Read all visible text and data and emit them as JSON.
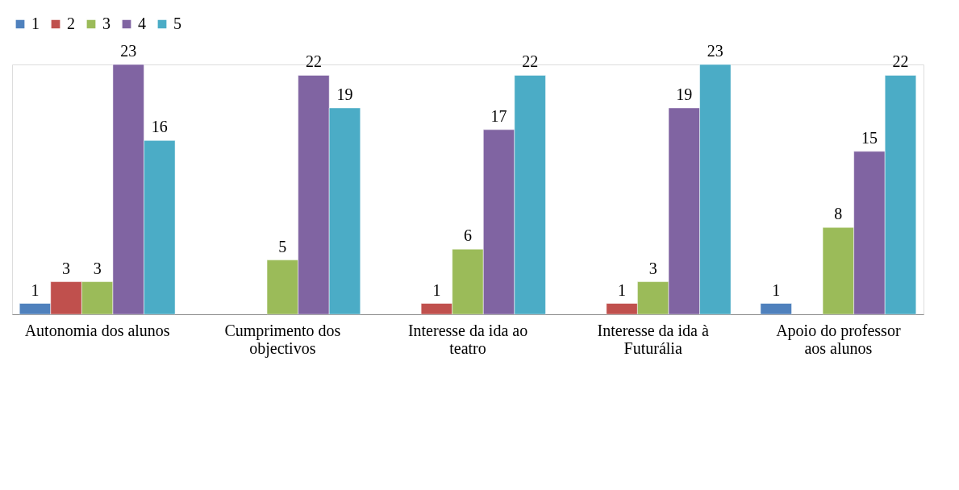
{
  "chart_data": {
    "type": "bar",
    "categories": [
      "Autonomia dos alunos",
      "Cumprimento dos objectivos",
      "Interesse da ida ao teatro",
      "Interesse da ida à Futurália",
      "Apoio do professor aos alunos"
    ],
    "series": [
      {
        "name": "1",
        "color": "#4f81bd",
        "values": [
          1,
          null,
          null,
          null,
          1
        ]
      },
      {
        "name": "2",
        "color": "#c0504d",
        "values": [
          3,
          null,
          1,
          1,
          null
        ]
      },
      {
        "name": "3",
        "color": "#9bbb59",
        "values": [
          3,
          5,
          6,
          3,
          8
        ]
      },
      {
        "name": "4",
        "color": "#8064a2",
        "values": [
          23,
          22,
          17,
          19,
          15
        ]
      },
      {
        "name": "5",
        "color": "#4bacc6",
        "values": [
          16,
          19,
          22,
          23,
          22
        ]
      }
    ],
    "data_labels": true,
    "legend": "top",
    "grid": false,
    "tick_labels": "x"
  }
}
